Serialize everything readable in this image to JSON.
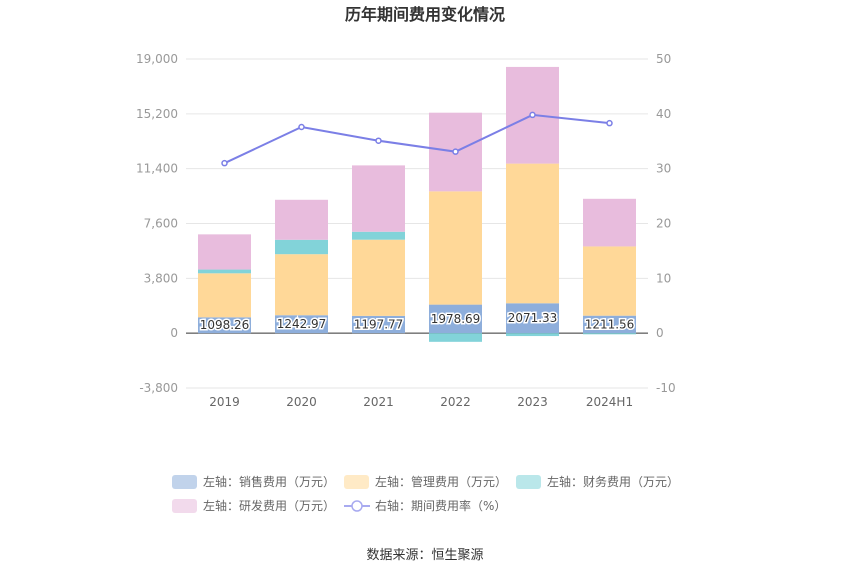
{
  "chart_data": {
    "type": "bar",
    "title": "历年期间费用变化情况",
    "categories": [
      "2019",
      "2020",
      "2021",
      "2022",
      "2023",
      "2024H1"
    ],
    "y_left": {
      "min": -3800,
      "max": 19000,
      "ticks": [
        "19,000",
        "15,200",
        "11,400",
        "7,600",
        "3,800",
        "0",
        "-3,800"
      ],
      "tick_values": [
        19000,
        15200,
        11400,
        7600,
        3800,
        0,
        -3800
      ]
    },
    "y_right": {
      "min": -10,
      "max": 50,
      "ticks": [
        "50",
        "40",
        "30",
        "20",
        "10",
        "0",
        "-10"
      ],
      "tick_values": [
        50,
        40,
        30,
        20,
        10,
        0,
        -10
      ]
    },
    "series": [
      {
        "name": "左轴：销售费用（万元）",
        "type": "bar",
        "axis": "left",
        "color": "#8eaedb",
        "values": [
          1098.26,
          1242.97,
          1197.77,
          1978.69,
          2071.33,
          1211.56
        ],
        "labels": [
          "1098.26",
          "1242.97",
          "1197.77",
          "1978.69",
          "2071.33",
          "1211.56"
        ]
      },
      {
        "name": "左轴：管理费用（万元）",
        "type": "bar",
        "axis": "left",
        "color": "#ffd898",
        "values": [
          3050,
          4230,
          5280,
          7850,
          9680,
          4800
        ]
      },
      {
        "name": "左轴：财务费用（万元）",
        "type": "bar",
        "axis": "left",
        "color": "#82d3d9",
        "values": [
          260,
          1000,
          550,
          -600,
          -200,
          -80
        ]
      },
      {
        "name": "左轴：研发费用（万元）",
        "type": "bar",
        "axis": "left",
        "color": "#e8bcdd",
        "values": [
          2440,
          2770,
          4600,
          5450,
          6700,
          3300
        ]
      },
      {
        "name": "右轴：期间费用率（%）",
        "type": "line",
        "axis": "right",
        "color": "#7b7fe6",
        "values": [
          31.0,
          37.6,
          35.1,
          33.1,
          39.8,
          38.3
        ]
      }
    ],
    "legend_position": "bottom",
    "grid": true
  },
  "source": "数据来源：恒生聚源"
}
